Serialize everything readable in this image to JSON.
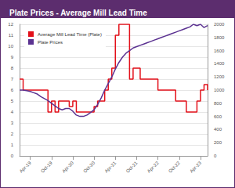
{
  "chart_data": {
    "type": "line",
    "title": "Plate Prices - Average Mill Lead Time",
    "categories": [
      null,
      null,
      null,
      "Apr-19",
      null,
      null,
      null,
      null,
      null,
      "Oct-19",
      null,
      null,
      null,
      null,
      null,
      "Apr-20",
      null,
      null,
      null,
      null,
      null,
      "Oct-20",
      null,
      null,
      null,
      null,
      null,
      "Apr-21",
      null,
      null,
      null,
      null,
      null,
      "Oct-21",
      null,
      null,
      null,
      null,
      null,
      "Apr-22",
      null,
      null,
      null,
      null,
      null,
      "Oct-22",
      null,
      null,
      null,
      null,
      null,
      "Apr-23",
      null,
      null
    ],
    "series": [
      {
        "name": "Average Mill Lead Time (Plate)",
        "color": "#e3101a",
        "line_style": "stepped",
        "values": [
          7,
          6,
          6,
          6,
          6,
          6,
          6,
          6,
          4,
          5,
          4,
          5,
          5,
          5,
          4.5,
          5,
          4,
          4,
          4,
          4,
          4,
          4.5,
          5,
          5,
          6,
          7,
          8,
          11,
          12,
          12,
          12,
          7,
          8,
          8,
          7,
          7,
          7,
          7,
          7,
          6,
          6,
          6,
          6,
          6,
          5,
          5,
          5,
          4,
          4,
          4,
          5,
          6,
          6.5,
          6
        ]
      },
      {
        "name": "Plate Prices",
        "color": "#5b3291",
        "line_style": "solid",
        "axis": "y2",
        "values": [
          1000,
          1000,
          990,
          980,
          960,
          940,
          900,
          870,
          840,
          800,
          760,
          720,
          700,
          720,
          720,
          680,
          620,
          600,
          600,
          620,
          660,
          700,
          780,
          880,
          1000,
          1100,
          1200,
          1320,
          1420,
          1500,
          1560,
          1600,
          1640,
          1660,
          1680,
          1700,
          1720,
          1740,
          1760,
          1780,
          1800,
          1820,
          1840,
          1860,
          1880,
          1900,
          1920,
          1940,
          1960,
          2000,
          1980,
          2000,
          1950,
          1980
        ]
      }
    ],
    "ylim": [
      0,
      12
    ],
    "yticks": [
      0,
      1,
      2,
      3,
      4,
      5,
      6,
      7,
      8,
      9,
      10,
      11,
      12
    ],
    "y2lim": [
      0,
      2000
    ],
    "y2ticks": [
      0,
      200,
      400,
      600,
      800,
      1000,
      1200,
      1400,
      1600,
      1800,
      2000
    ],
    "grid": true,
    "legend": "top-left"
  }
}
